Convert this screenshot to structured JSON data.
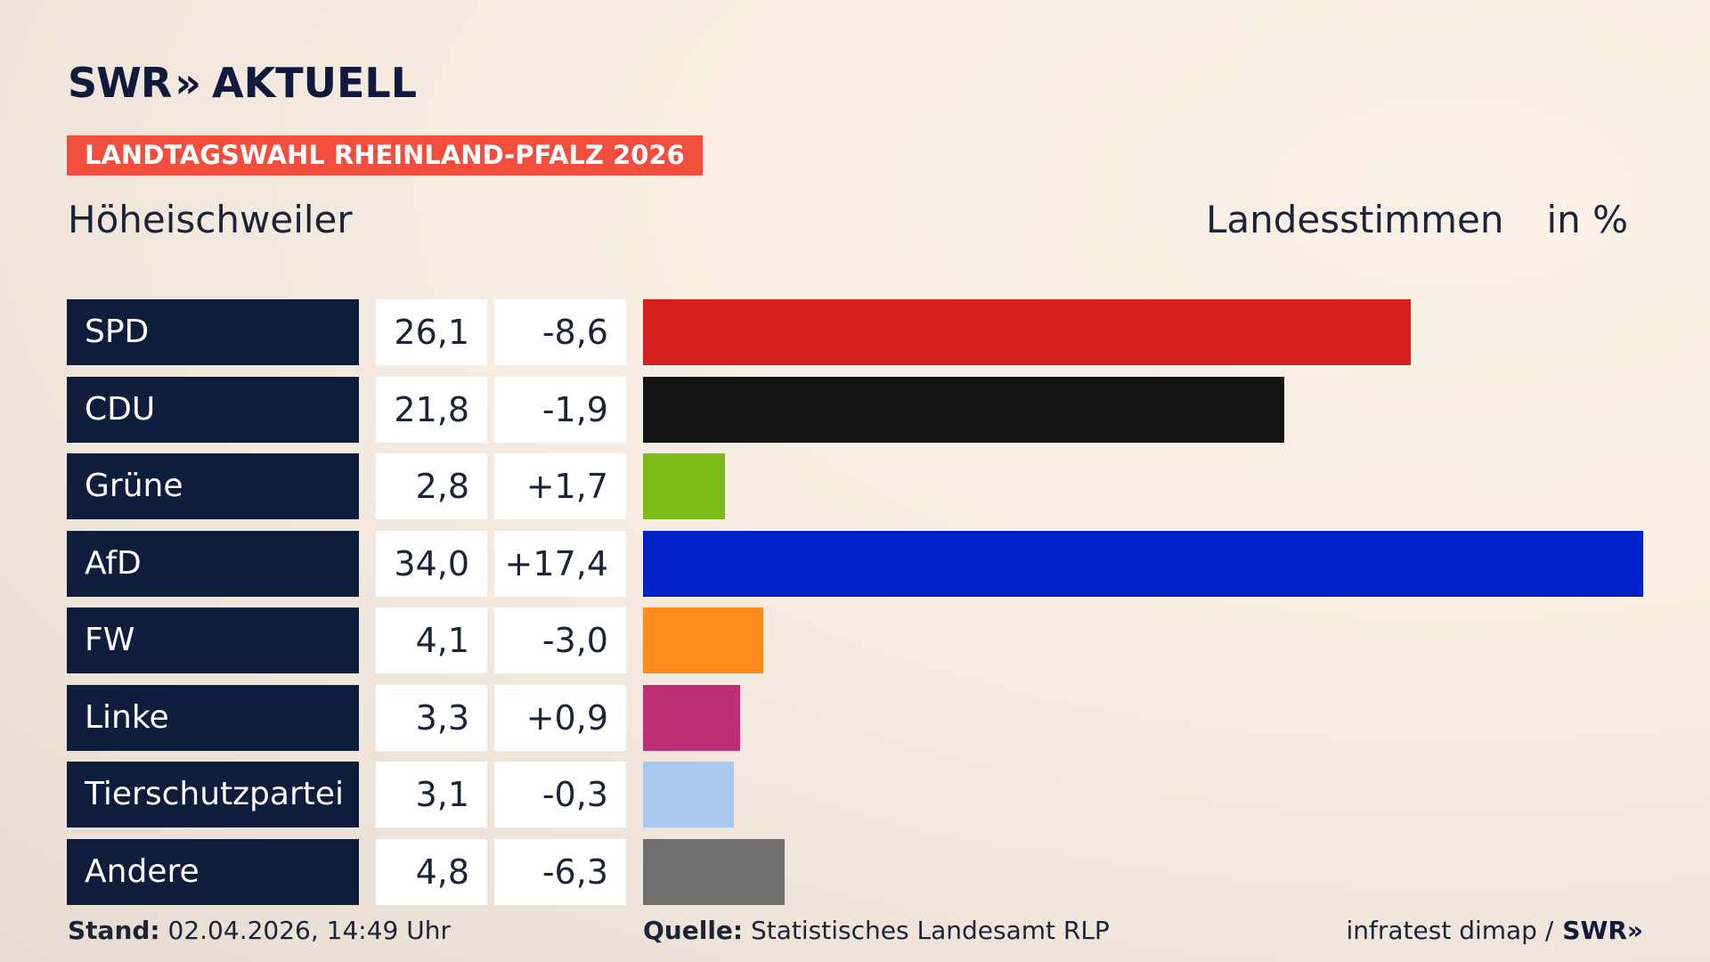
{
  "header": {
    "logo_brand": "SWR",
    "logo_chevrons": "»",
    "logo_word": "AKTUELL",
    "banner": "LANDTAGSWAHL RHEINLAND-PFALZ 2026",
    "place": "Höheischweiler",
    "measure": "Landesstimmen",
    "unit": "in %"
  },
  "colors": {
    "banner": "#f24d3d",
    "label_bg": "#0f1d3d"
  },
  "chart_data": {
    "type": "bar",
    "orientation": "horizontal",
    "categories": [
      "SPD",
      "CDU",
      "Grüne",
      "AfD",
      "FW",
      "Linke",
      "Tierschutzpartei",
      "Andere"
    ],
    "values": [
      26.1,
      21.8,
      2.8,
      34.0,
      4.1,
      3.3,
      3.1,
      4.8
    ],
    "value_labels": [
      "26,1",
      "21,8",
      "2,8",
      "34,0",
      "4,1",
      "3,3",
      "3,1",
      "4,8"
    ],
    "changes": [
      -8.6,
      -1.9,
      1.7,
      17.4,
      -3.0,
      0.9,
      -0.3,
      -6.3
    ],
    "change_labels": [
      "-8,6",
      "-1,9",
      "+1,7",
      "+17,4",
      "-3,0",
      "+0,9",
      "-0,3",
      "-6,3"
    ],
    "colors": [
      "#d62020",
      "#141414",
      "#7cbd1c",
      "#0022c8",
      "#ff8c1a",
      "#bd2e75",
      "#abc9ef",
      "#6f6f70"
    ],
    "title": "Landesstimmen",
    "ylabel": "in %",
    "xlim": [
      0,
      34.0
    ],
    "grid": false,
    "legend": "none"
  },
  "footer": {
    "stand_label": "Stand:",
    "stand_value": "02.04.2026, 14:49 Uhr",
    "source_label": "Quelle:",
    "source_value": "Statistisches Landesamt RLP",
    "credit": "infratest dimap /",
    "credit_logo": "SWR»"
  }
}
